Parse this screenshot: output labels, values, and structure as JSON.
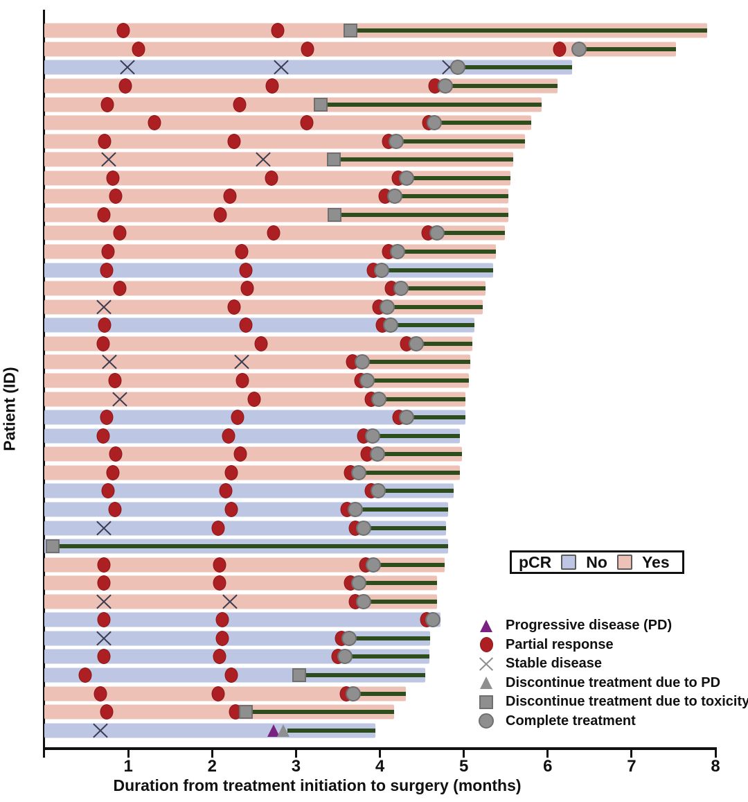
{
  "axes": {
    "x_title": "Duration from treatment initiation to surgery (months)",
    "y_title": "Patient (ID)",
    "x_ticks": [
      1,
      2,
      3,
      4,
      5,
      6,
      7,
      8
    ],
    "x_range": [
      0,
      8
    ]
  },
  "pcr_legend": {
    "title": "pCR",
    "no_label": "No",
    "yes_label": "Yes"
  },
  "marker_legend": [
    {
      "type": "pd",
      "label": "Progressive disease (PD)"
    },
    {
      "type": "pr",
      "label": "Partial response"
    },
    {
      "type": "sd",
      "label": "Stable disease"
    },
    {
      "type": "disc_pd",
      "label": "Discontinue treatment due to PD"
    },
    {
      "type": "disc_tox",
      "label": "Discontinue treatment due to toxicity"
    },
    {
      "type": "complete",
      "label": "Complete treatment"
    }
  ],
  "colors": {
    "pcr_yes_bar": "#edc1b5",
    "pcr_no_bar": "#bdc7e3",
    "partial_response": "#ac1f22",
    "gray_marker": "#8f8f8f",
    "progressive_disease": "#7a2282",
    "treatment_line": "#2d4d1c",
    "axis": "#111111"
  },
  "chart_data": {
    "type": "swimmer",
    "x_unit": "months",
    "x_range": [
      0,
      8
    ],
    "patients": [
      {
        "pcr": "Yes",
        "duration": 7.9,
        "line_start": 3.65,
        "markers": [
          {
            "type": "pr",
            "x": 0.94
          },
          {
            "type": "pr",
            "x": 2.78
          },
          {
            "type": "disc_tox",
            "x": 3.65
          }
        ]
      },
      {
        "pcr": "Yes",
        "duration": 7.53,
        "line_start": 6.37,
        "markers": [
          {
            "type": "pr",
            "x": 1.12
          },
          {
            "type": "pr",
            "x": 3.14
          },
          {
            "type": "pr",
            "x": 6.14
          },
          {
            "type": "complete",
            "x": 6.37
          }
        ]
      },
      {
        "pcr": "No",
        "duration": 6.29,
        "line_start": 4.93,
        "markers": [
          {
            "type": "sd",
            "x": 0.99
          },
          {
            "type": "sd",
            "x": 2.82
          },
          {
            "type": "sd",
            "x": 4.83
          },
          {
            "type": "complete",
            "x": 4.93
          }
        ]
      },
      {
        "pcr": "Yes",
        "duration": 6.12,
        "line_start": 4.78,
        "markers": [
          {
            "type": "pr",
            "x": 0.97
          },
          {
            "type": "pr",
            "x": 2.72
          },
          {
            "type": "pr",
            "x": 4.66
          },
          {
            "type": "complete",
            "x": 4.78
          }
        ]
      },
      {
        "pcr": "Yes",
        "duration": 5.93,
        "line_start": 3.29,
        "markers": [
          {
            "type": "pr",
            "x": 0.75
          },
          {
            "type": "pr",
            "x": 2.33
          },
          {
            "type": "disc_tox",
            "x": 3.29
          }
        ]
      },
      {
        "pcr": "Yes",
        "duration": 5.8,
        "line_start": 4.65,
        "markers": [
          {
            "type": "pr",
            "x": 1.31
          },
          {
            "type": "pr",
            "x": 3.13
          },
          {
            "type": "pr",
            "x": 4.58
          },
          {
            "type": "complete",
            "x": 4.65
          }
        ]
      },
      {
        "pcr": "Yes",
        "duration": 5.73,
        "line_start": 4.19,
        "markers": [
          {
            "type": "pr",
            "x": 0.72
          },
          {
            "type": "pr",
            "x": 2.26
          },
          {
            "type": "pr",
            "x": 4.1
          },
          {
            "type": "complete",
            "x": 4.19
          }
        ]
      },
      {
        "pcr": "Yes",
        "duration": 5.59,
        "line_start": 3.45,
        "markers": [
          {
            "type": "sd",
            "x": 0.77
          },
          {
            "type": "sd",
            "x": 2.61
          },
          {
            "type": "disc_tox",
            "x": 3.45
          }
        ]
      },
      {
        "pcr": "Yes",
        "duration": 5.56,
        "line_start": 4.32,
        "markers": [
          {
            "type": "pr",
            "x": 0.82
          },
          {
            "type": "pr",
            "x": 2.71
          },
          {
            "type": "pr",
            "x": 4.22
          },
          {
            "type": "complete",
            "x": 4.32
          }
        ]
      },
      {
        "pcr": "Yes",
        "duration": 5.53,
        "line_start": 4.18,
        "markers": [
          {
            "type": "pr",
            "x": 0.85
          },
          {
            "type": "pr",
            "x": 2.21
          },
          {
            "type": "pr",
            "x": 4.06
          },
          {
            "type": "complete",
            "x": 4.18
          }
        ]
      },
      {
        "pcr": "Yes",
        "duration": 5.53,
        "line_start": 3.46,
        "markers": [
          {
            "type": "pr",
            "x": 0.71
          },
          {
            "type": "pr",
            "x": 2.1
          },
          {
            "type": "disc_tox",
            "x": 3.46
          }
        ]
      },
      {
        "pcr": "Yes",
        "duration": 5.49,
        "line_start": 4.68,
        "markers": [
          {
            "type": "pr",
            "x": 0.9
          },
          {
            "type": "pr",
            "x": 2.73
          },
          {
            "type": "pr",
            "x": 4.57
          },
          {
            "type": "complete",
            "x": 4.68
          }
        ]
      },
      {
        "pcr": "Yes",
        "duration": 5.38,
        "line_start": 4.21,
        "markers": [
          {
            "type": "pr",
            "x": 0.76
          },
          {
            "type": "pr",
            "x": 2.35
          },
          {
            "type": "pr",
            "x": 4.1
          },
          {
            "type": "complete",
            "x": 4.21
          }
        ]
      },
      {
        "pcr": "No",
        "duration": 5.35,
        "line_start": 4.02,
        "markers": [
          {
            "type": "pr",
            "x": 0.74
          },
          {
            "type": "pr",
            "x": 2.4
          },
          {
            "type": "pr",
            "x": 3.92
          },
          {
            "type": "complete",
            "x": 4.02
          }
        ]
      },
      {
        "pcr": "Yes",
        "duration": 5.26,
        "line_start": 4.25,
        "markers": [
          {
            "type": "pr",
            "x": 0.9
          },
          {
            "type": "pr",
            "x": 2.42
          },
          {
            "type": "pr",
            "x": 4.14
          },
          {
            "type": "complete",
            "x": 4.25
          }
        ]
      },
      {
        "pcr": "Yes",
        "duration": 5.23,
        "line_start": 4.09,
        "markers": [
          {
            "type": "sd",
            "x": 0.71
          },
          {
            "type": "pr",
            "x": 2.26
          },
          {
            "type": "pr",
            "x": 3.99
          },
          {
            "type": "complete",
            "x": 4.09
          }
        ]
      },
      {
        "pcr": "No",
        "duration": 5.13,
        "line_start": 4.13,
        "markers": [
          {
            "type": "pr",
            "x": 0.72
          },
          {
            "type": "pr",
            "x": 2.4
          },
          {
            "type": "pr",
            "x": 4.03
          },
          {
            "type": "complete",
            "x": 4.13
          }
        ]
      },
      {
        "pcr": "Yes",
        "duration": 5.1,
        "line_start": 4.43,
        "markers": [
          {
            "type": "pr",
            "x": 0.7
          },
          {
            "type": "pr",
            "x": 2.58
          },
          {
            "type": "pr",
            "x": 4.32
          },
          {
            "type": "complete",
            "x": 4.43
          }
        ]
      },
      {
        "pcr": "Yes",
        "duration": 5.08,
        "line_start": 3.79,
        "markers": [
          {
            "type": "sd",
            "x": 0.78
          },
          {
            "type": "sd",
            "x": 2.35
          },
          {
            "type": "pr",
            "x": 3.67
          },
          {
            "type": "complete",
            "x": 3.79
          }
        ]
      },
      {
        "pcr": "Yes",
        "duration": 5.06,
        "line_start": 3.85,
        "markers": [
          {
            "type": "pr",
            "x": 0.84
          },
          {
            "type": "pr",
            "x": 2.36
          },
          {
            "type": "pr",
            "x": 3.77
          },
          {
            "type": "complete",
            "x": 3.85
          }
        ]
      },
      {
        "pcr": "Yes",
        "duration": 5.02,
        "line_start": 3.99,
        "markers": [
          {
            "type": "sd",
            "x": 0.9
          },
          {
            "type": "pr",
            "x": 2.5
          },
          {
            "type": "pr",
            "x": 3.9
          },
          {
            "type": "complete",
            "x": 3.99
          }
        ]
      },
      {
        "pcr": "No",
        "duration": 5.02,
        "line_start": 4.32,
        "markers": [
          {
            "type": "pr",
            "x": 0.74
          },
          {
            "type": "pr",
            "x": 2.3
          },
          {
            "type": "pr",
            "x": 4.23
          },
          {
            "type": "complete",
            "x": 4.32
          }
        ]
      },
      {
        "pcr": "No",
        "duration": 4.95,
        "line_start": 3.91,
        "markers": [
          {
            "type": "pr",
            "x": 0.7
          },
          {
            "type": "pr",
            "x": 2.2
          },
          {
            "type": "pr",
            "x": 3.81
          },
          {
            "type": "complete",
            "x": 3.91
          }
        ]
      },
      {
        "pcr": "Yes",
        "duration": 4.98,
        "line_start": 3.97,
        "markers": [
          {
            "type": "pr",
            "x": 0.85
          },
          {
            "type": "pr",
            "x": 2.34
          },
          {
            "type": "pr",
            "x": 3.85
          },
          {
            "type": "complete",
            "x": 3.97
          }
        ]
      },
      {
        "pcr": "Yes",
        "duration": 4.95,
        "line_start": 3.75,
        "markers": [
          {
            "type": "pr",
            "x": 0.82
          },
          {
            "type": "pr",
            "x": 2.23
          },
          {
            "type": "pr",
            "x": 3.65
          },
          {
            "type": "complete",
            "x": 3.75
          }
        ]
      },
      {
        "pcr": "No",
        "duration": 4.88,
        "line_start": 3.98,
        "markers": [
          {
            "type": "pr",
            "x": 0.76
          },
          {
            "type": "pr",
            "x": 2.16
          },
          {
            "type": "pr",
            "x": 3.9
          },
          {
            "type": "complete",
            "x": 3.98
          }
        ]
      },
      {
        "pcr": "No",
        "duration": 4.81,
        "line_start": 3.71,
        "markers": [
          {
            "type": "pr",
            "x": 0.84
          },
          {
            "type": "pr",
            "x": 2.23
          },
          {
            "type": "pr",
            "x": 3.61
          },
          {
            "type": "complete",
            "x": 3.71
          }
        ]
      },
      {
        "pcr": "No",
        "duration": 4.79,
        "line_start": 3.81,
        "markers": [
          {
            "type": "sd",
            "x": 0.71
          },
          {
            "type": "pr",
            "x": 2.07
          },
          {
            "type": "pr",
            "x": 3.71
          },
          {
            "type": "complete",
            "x": 3.81
          }
        ]
      },
      {
        "pcr": "No",
        "duration": 4.81,
        "line_start": 0.1,
        "markers": [
          {
            "type": "disc_tox",
            "x": 0.1
          }
        ]
      },
      {
        "pcr": "Yes",
        "duration": 4.77,
        "line_start": 3.92,
        "markers": [
          {
            "type": "pr",
            "x": 0.71
          },
          {
            "type": "pr",
            "x": 2.09
          },
          {
            "type": "pr",
            "x": 3.83
          },
          {
            "type": "complete",
            "x": 3.92
          }
        ]
      },
      {
        "pcr": "Yes",
        "duration": 4.68,
        "line_start": 3.75,
        "markers": [
          {
            "type": "pr",
            "x": 0.71
          },
          {
            "type": "pr",
            "x": 2.09
          },
          {
            "type": "pr",
            "x": 3.65
          },
          {
            "type": "complete",
            "x": 3.75
          }
        ]
      },
      {
        "pcr": "Yes",
        "duration": 4.68,
        "line_start": 3.81,
        "markers": [
          {
            "type": "sd",
            "x": 0.71
          },
          {
            "type": "sd",
            "x": 2.21
          },
          {
            "type": "pr",
            "x": 3.71
          },
          {
            "type": "complete",
            "x": 3.81
          }
        ]
      },
      {
        "pcr": "No",
        "duration": 4.72,
        "line_start": null,
        "markers": [
          {
            "type": "pr",
            "x": 0.71
          },
          {
            "type": "pr",
            "x": 2.12
          },
          {
            "type": "pr",
            "x": 4.56
          },
          {
            "type": "complete",
            "x": 4.63
          }
        ]
      },
      {
        "pcr": "No",
        "duration": 4.6,
        "line_start": 3.63,
        "markers": [
          {
            "type": "sd",
            "x": 0.71
          },
          {
            "type": "pr",
            "x": 2.12
          },
          {
            "type": "pr",
            "x": 3.54
          },
          {
            "type": "complete",
            "x": 3.63
          }
        ]
      },
      {
        "pcr": "No",
        "duration": 4.59,
        "line_start": 3.58,
        "markers": [
          {
            "type": "pr",
            "x": 0.71
          },
          {
            "type": "pr",
            "x": 2.09
          },
          {
            "type": "pr",
            "x": 3.5
          },
          {
            "type": "complete",
            "x": 3.58
          }
        ]
      },
      {
        "pcr": "No",
        "duration": 4.54,
        "line_start": 3.04,
        "markers": [
          {
            "type": "pr",
            "x": 0.49
          },
          {
            "type": "pr",
            "x": 2.23
          },
          {
            "type": "disc_tox",
            "x": 3.04
          }
        ]
      },
      {
        "pcr": "Yes",
        "duration": 4.31,
        "line_start": 3.68,
        "markers": [
          {
            "type": "pr",
            "x": 0.67
          },
          {
            "type": "pr",
            "x": 2.07
          },
          {
            "type": "pr",
            "x": 3.6
          },
          {
            "type": "complete",
            "x": 3.68
          }
        ]
      },
      {
        "pcr": "Yes",
        "duration": 4.17,
        "line_start": 2.4,
        "markers": [
          {
            "type": "pr",
            "x": 0.74
          },
          {
            "type": "pr",
            "x": 2.28
          },
          {
            "type": "disc_tox",
            "x": 2.4
          }
        ]
      },
      {
        "pcr": "No",
        "duration": 3.95,
        "line_start": 2.9,
        "markers": [
          {
            "type": "sd",
            "x": 0.67
          },
          {
            "type": "pd",
            "x": 2.73
          },
          {
            "type": "disc_pd",
            "x": 2.85
          }
        ]
      }
    ]
  }
}
